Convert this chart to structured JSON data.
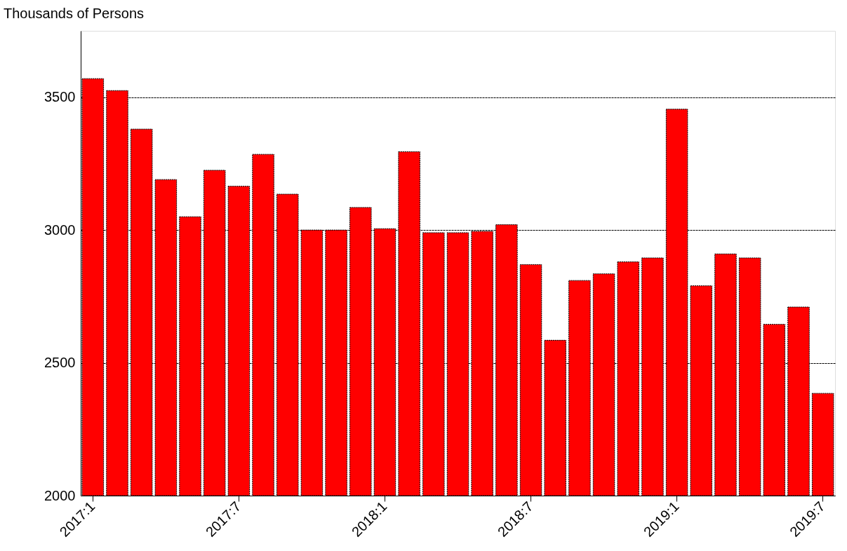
{
  "chart_data": {
    "type": "bar",
    "ylabel": "Thousands of Persons",
    "categories": [
      "2017:1",
      null,
      null,
      null,
      null,
      null,
      "2017:7",
      null,
      null,
      null,
      null,
      null,
      "2018:1",
      null,
      null,
      null,
      null,
      null,
      "2018:7",
      null,
      null,
      null,
      null,
      null,
      "2019:1",
      null,
      null,
      null,
      null,
      null,
      "2019:7"
    ],
    "values": [
      3570,
      3525,
      3380,
      3190,
      3050,
      3225,
      3165,
      3285,
      3135,
      3000,
      3000,
      3085,
      3005,
      3295,
      2990,
      2990,
      2995,
      3020,
      2870,
      2585,
      2810,
      2835,
      2880,
      2895,
      3455,
      2790,
      2910,
      2895,
      2645,
      2710,
      2385
    ],
    "color": "#ff0000",
    "ylim": [
      2000,
      3750
    ],
    "yticks": [
      2000,
      2500,
      3000,
      3500
    ],
    "grid": "y"
  }
}
